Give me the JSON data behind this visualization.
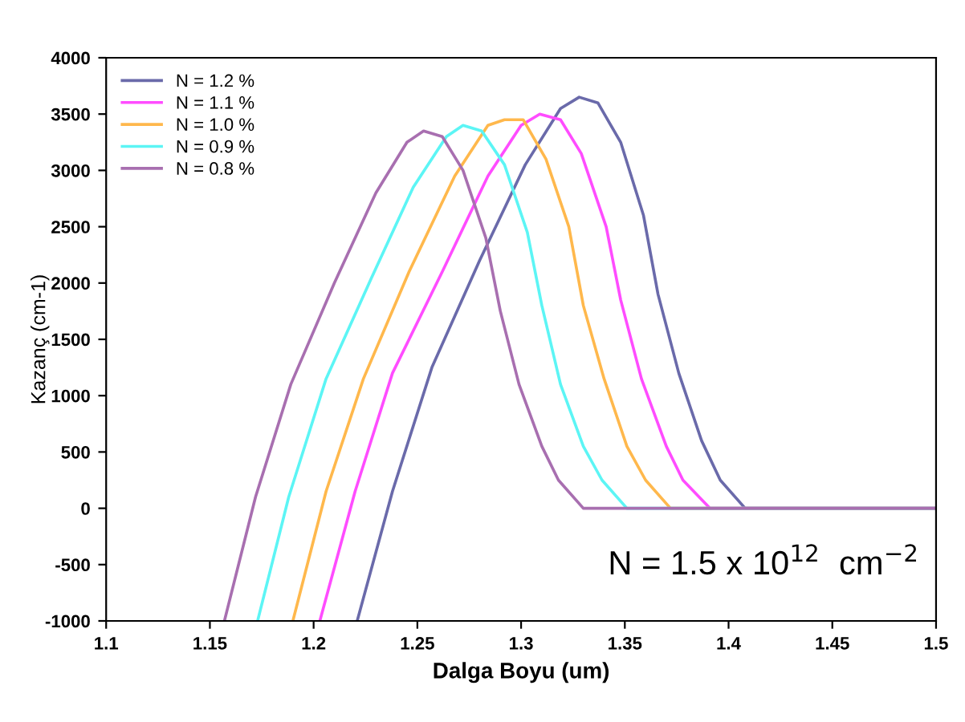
{
  "chart_data": {
    "type": "line",
    "xlabel": "Dalga Boyu (um)",
    "ylabel": "Kazanç (cm-1)",
    "xlim": [
      1.1,
      1.5
    ],
    "xticks": [
      1.1,
      1.15,
      1.2,
      1.25,
      1.3,
      1.35,
      1.4,
      1.45,
      1.5
    ],
    "ylim": [
      -1000,
      4000
    ],
    "yticks": [
      -1000,
      -500,
      0,
      500,
      1000,
      1500,
      2000,
      2500,
      3000,
      3500,
      4000
    ],
    "grid": false,
    "legend": "top left",
    "marker": "none",
    "line_style": "solid",
    "annotations": [
      "N = 1.5 x 10$^{12}$  cm$^{−2}$"
    ],
    "series": [
      {
        "name": "N = 1.2 %",
        "color": "#6a6aaa",
        "x": [
          1.221,
          1.238,
          1.257,
          1.28,
          1.302,
          1.319,
          1.328,
          1.337,
          1.348,
          1.359,
          1.366,
          1.376,
          1.387,
          1.396,
          1.408,
          1.5
        ],
        "values": [
          -1000,
          150,
          1250,
          2200,
          3050,
          3550,
          3650,
          3600,
          3250,
          2600,
          1900,
          1200,
          600,
          250,
          0,
          0
        ]
      },
      {
        "name": "N = 1.1 %",
        "color": "#ff4cff",
        "x": [
          1.203,
          1.22,
          1.238,
          1.262,
          1.284,
          1.3,
          1.309,
          1.319,
          1.329,
          1.341,
          1.348,
          1.358,
          1.37,
          1.378,
          1.391,
          1.5
        ],
        "values": [
          -1000,
          150,
          1200,
          2100,
          2950,
          3400,
          3500,
          3450,
          3150,
          2500,
          1850,
          1150,
          550,
          250,
          0,
          0
        ]
      },
      {
        "name": "N = 1.0 %",
        "color": "#ffb84c",
        "x": [
          1.19,
          1.206,
          1.224,
          1.246,
          1.268,
          1.284,
          1.292,
          1.301,
          1.312,
          1.323,
          1.33,
          1.34,
          1.351,
          1.36,
          1.372,
          1.5
        ],
        "values": [
          -1000,
          150,
          1150,
          2100,
          2950,
          3400,
          3450,
          3450,
          3100,
          2500,
          1800,
          1150,
          550,
          250,
          0,
          0
        ]
      },
      {
        "name": "N = 0.9 %",
        "color": "#5cf5f5",
        "x": [
          1.173,
          1.188,
          1.206,
          1.228,
          1.248,
          1.264,
          1.272,
          1.281,
          1.292,
          1.303,
          1.31,
          1.319,
          1.33,
          1.339,
          1.351,
          1.5
        ],
        "values": [
          -1000,
          100,
          1150,
          2050,
          2850,
          3300,
          3400,
          3350,
          3050,
          2450,
          1800,
          1100,
          550,
          250,
          0,
          0
        ]
      },
      {
        "name": "N = 0.8 %",
        "color": "#a86fb0",
        "x": [
          1.157,
          1.172,
          1.189,
          1.21,
          1.23,
          1.245,
          1.253,
          1.262,
          1.272,
          1.283,
          1.29,
          1.299,
          1.31,
          1.318,
          1.33,
          1.5
        ],
        "values": [
          -1000,
          100,
          1100,
          2000,
          2800,
          3250,
          3350,
          3300,
          3000,
          2400,
          1750,
          1100,
          550,
          250,
          0,
          0
        ]
      }
    ]
  }
}
